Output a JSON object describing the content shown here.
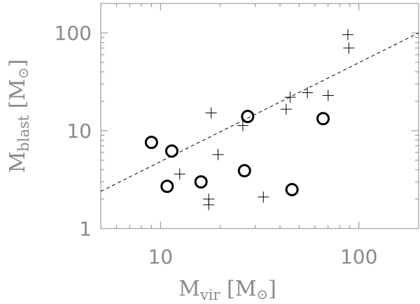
{
  "chart_data": {
    "type": "scatter",
    "xscale": "log",
    "yscale": "log",
    "xlim": [
      5,
      200
    ],
    "ylim": [
      1,
      200
    ],
    "grid": false,
    "xlabel": "M",
    "xlabel_sub": "vir",
    "xlabel_unit": "[M",
    "ylabel": "M",
    "ylabel_sub": "blast",
    "ylabel_unit": "[M",
    "x_tick_labels": [
      {
        "value": 10,
        "label": "10"
      },
      {
        "value": 100,
        "label": "100"
      }
    ],
    "y_tick_labels": [
      {
        "value": 1,
        "label": "1"
      },
      {
        "value": 10,
        "label": "10"
      },
      {
        "value": 100,
        "label": "100"
      }
    ],
    "series": [
      {
        "marker": "circle",
        "points": [
          {
            "x": 9.0,
            "y": 7.6
          },
          {
            "x": 11.4,
            "y": 6.2
          },
          {
            "x": 10.8,
            "y": 2.7
          },
          {
            "x": 16.0,
            "y": 3.0
          },
          {
            "x": 26.5,
            "y": 3.9
          },
          {
            "x": 27.5,
            "y": 14.0
          },
          {
            "x": 46.0,
            "y": 2.5
          },
          {
            "x": 66.0,
            "y": 13.3
          }
        ]
      },
      {
        "marker": "plus",
        "points": [
          {
            "x": 12.5,
            "y": 3.6
          },
          {
            "x": 17.5,
            "y": 2.0
          },
          {
            "x": 17.5,
            "y": 1.75
          },
          {
            "x": 18.0,
            "y": 15.2
          },
          {
            "x": 19.5,
            "y": 5.7
          },
          {
            "x": 26.0,
            "y": 11.3
          },
          {
            "x": 33.0,
            "y": 2.1
          },
          {
            "x": 43.0,
            "y": 16.6
          },
          {
            "x": 45.0,
            "y": 22.0
          },
          {
            "x": 55.0,
            "y": 24.5
          },
          {
            "x": 70.0,
            "y": 23.0
          },
          {
            "x": 88.0,
            "y": 96.0
          },
          {
            "x": 89.0,
            "y": 70.0
          }
        ]
      },
      {
        "marker": "line",
        "style": "dashed",
        "points": [
          {
            "x": 5,
            "y": 2.4
          },
          {
            "x": 200,
            "y": 100
          }
        ]
      }
    ]
  }
}
